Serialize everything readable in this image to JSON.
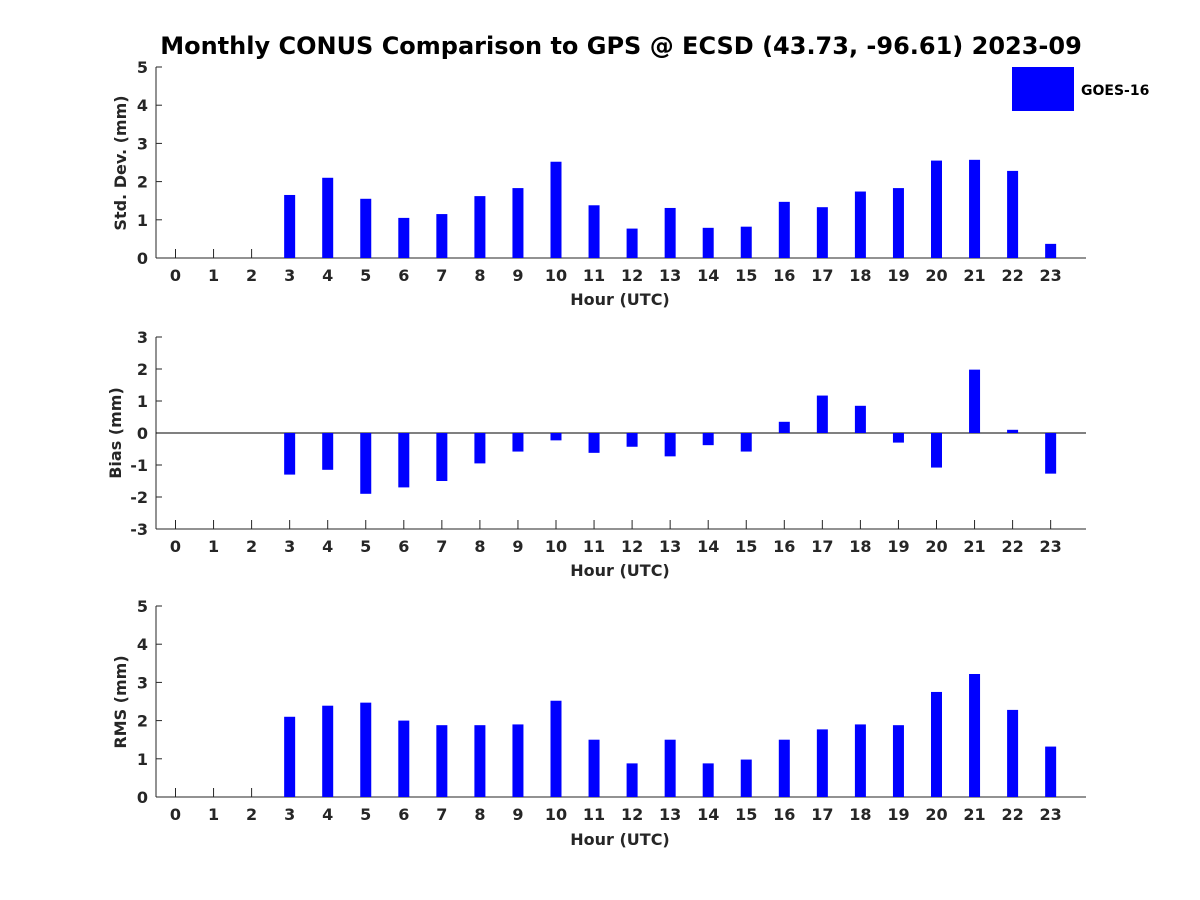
{
  "chart_data": {
    "title": "Monthly CONUS Comparison to GPS @ ECSD (43.73, -96.61) 2023-09",
    "legend": {
      "label": "GOES-16",
      "color": "#0000ff",
      "position": "top-right"
    },
    "panels": [
      {
        "type": "bar",
        "ylabel": "Std. Dev. (mm)",
        "xlabel": "Hour (UTC)",
        "ylim": [
          0,
          5
        ],
        "yticks": [
          "0",
          "1",
          "2",
          "3",
          "4",
          "5"
        ],
        "categories": [
          "0",
          "1",
          "2",
          "3",
          "4",
          "5",
          "6",
          "7",
          "8",
          "9",
          "10",
          "11",
          "12",
          "13",
          "14",
          "15",
          "16",
          "17",
          "18",
          "19",
          "20",
          "21",
          "22",
          "23"
        ],
        "values": [
          null,
          null,
          null,
          1.65,
          2.1,
          1.55,
          1.05,
          1.15,
          1.62,
          1.83,
          2.52,
          1.38,
          0.77,
          1.31,
          0.79,
          0.82,
          1.47,
          1.33,
          1.74,
          1.83,
          2.55,
          2.57,
          2.28,
          0.37
        ]
      },
      {
        "type": "bar",
        "ylabel": "Bias (mm)",
        "xlabel": "Hour (UTC)",
        "ylim": [
          -3,
          3
        ],
        "yticks": [
          "-3",
          "-2",
          "-1",
          "0",
          "1",
          "2",
          "3"
        ],
        "categories": [
          "0",
          "1",
          "2",
          "3",
          "4",
          "5",
          "6",
          "7",
          "8",
          "9",
          "10",
          "11",
          "12",
          "13",
          "14",
          "15",
          "16",
          "17",
          "18",
          "19",
          "20",
          "21",
          "22",
          "23"
        ],
        "values": [
          null,
          null,
          null,
          -1.3,
          -1.15,
          -1.9,
          -1.7,
          -1.5,
          -0.95,
          -0.58,
          -0.23,
          -0.62,
          -0.43,
          -0.73,
          -0.38,
          -0.58,
          0.35,
          1.17,
          0.85,
          -0.3,
          -1.08,
          1.98,
          0.1,
          -1.27
        ]
      },
      {
        "type": "bar",
        "ylabel": "RMS (mm)",
        "xlabel": "Hour (UTC)",
        "ylim": [
          0,
          5
        ],
        "yticks": [
          "0",
          "1",
          "2",
          "3",
          "4",
          "5"
        ],
        "categories": [
          "0",
          "1",
          "2",
          "3",
          "4",
          "5",
          "6",
          "7",
          "8",
          "9",
          "10",
          "11",
          "12",
          "13",
          "14",
          "15",
          "16",
          "17",
          "18",
          "19",
          "20",
          "21",
          "22",
          "23"
        ],
        "values": [
          null,
          null,
          null,
          2.1,
          2.39,
          2.47,
          2.0,
          1.88,
          1.88,
          1.9,
          2.52,
          1.5,
          0.88,
          1.5,
          0.88,
          0.98,
          1.5,
          1.77,
          1.9,
          1.88,
          2.75,
          3.22,
          2.28,
          1.32
        ]
      }
    ]
  }
}
